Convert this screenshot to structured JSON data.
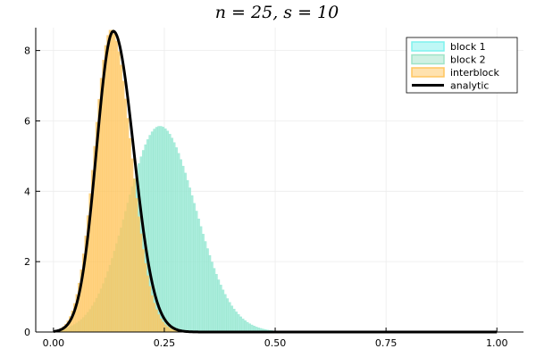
{
  "chart_data": {
    "type": "histogram",
    "title": "n = 25, s = 10",
    "xlabel": "",
    "ylabel": "",
    "xlim": [
      -0.04,
      1.06
    ],
    "ylim": [
      0,
      8.65
    ],
    "x_ticks": [
      0.0,
      0.25,
      0.5,
      0.75,
      1.0
    ],
    "x_tick_labels": [
      "0.00",
      "0.25",
      "0.50",
      "0.75",
      "1.00"
    ],
    "y_ticks": [
      0,
      2,
      4,
      6,
      8
    ],
    "y_tick_labels": [
      "0",
      "2",
      "4",
      "6",
      "8"
    ],
    "grid": true,
    "legend_position": "top-right",
    "bin_width": 0.005,
    "series": [
      {
        "name": "block 1",
        "kind": "histogram",
        "color": "#7ff2ee",
        "mode": 0.24,
        "peak": 5.85,
        "sigma_left": 0.075,
        "sigma_right": 0.08,
        "support": [
          0.0,
          0.5
        ]
      },
      {
        "name": "block 2",
        "kind": "histogram",
        "color": "#9fe3c7",
        "mode": 0.24,
        "peak": 5.85,
        "sigma_left": 0.075,
        "sigma_right": 0.08,
        "support": [
          0.0,
          0.5
        ]
      },
      {
        "name": "interblock",
        "kind": "histogram",
        "color": "#ffc55e",
        "mode": 0.13,
        "peak": 8.6,
        "sigma_left": 0.038,
        "sigma_right": 0.045,
        "support": [
          0.0,
          0.34
        ]
      },
      {
        "name": "analytic",
        "kind": "line",
        "color": "#000000",
        "mode": 0.135,
        "peak": 8.55,
        "sigma_left": 0.038,
        "sigma_right": 0.046,
        "support": [
          0.0,
          1.0
        ]
      }
    ]
  }
}
